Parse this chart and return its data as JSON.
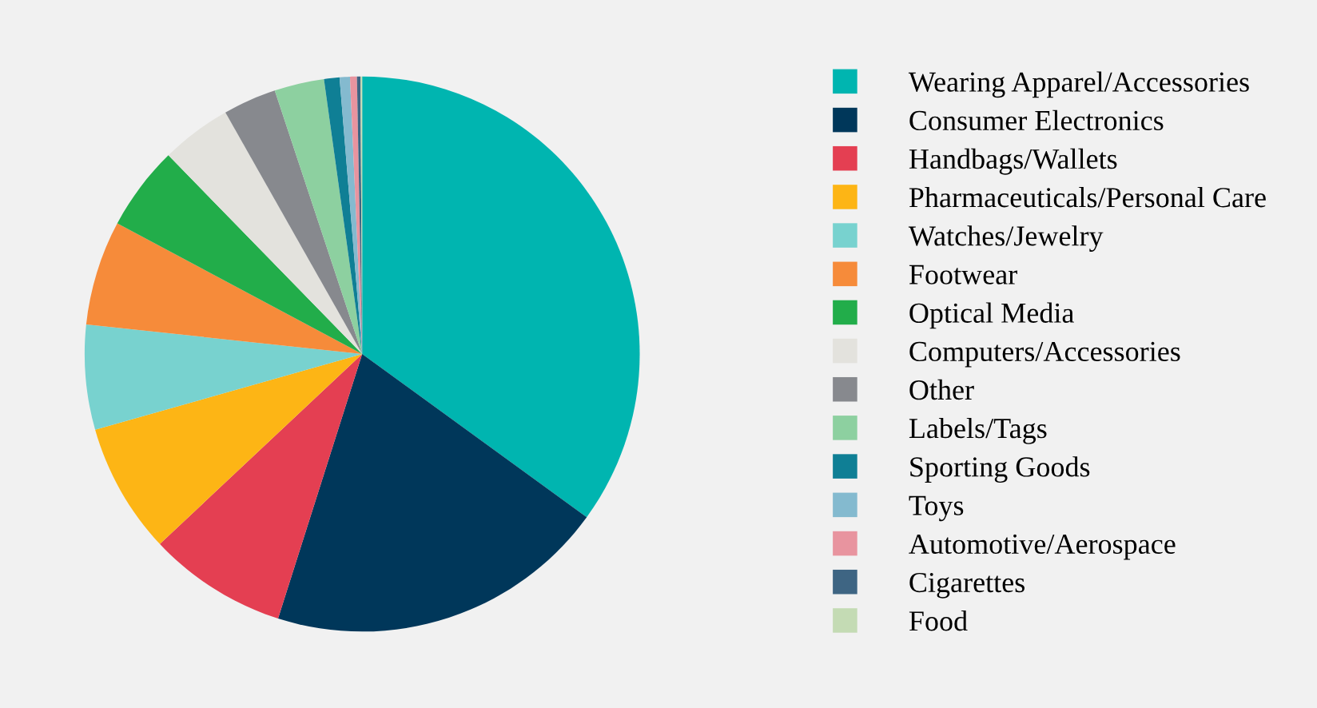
{
  "chart_data": {
    "type": "pie",
    "legend": "right",
    "categories": [
      "Wearing Apparel/Accessories",
      "Consumer Electronics",
      "Handbags/Wallets",
      "Pharmaceuticals/Personal Care",
      "Watches/Jewelry",
      "Footwear",
      "Optical Media",
      "Computers/Accessories",
      "Other",
      "Labels/Tags",
      "Sporting Goods",
      "Toys",
      "Automotive/Aerospace",
      "Cigarettes",
      "Food"
    ],
    "values": [
      35.0,
      19.9,
      8.1,
      7.6,
      6.1,
      6.1,
      4.9,
      4.1,
      3.1,
      2.9,
      0.9,
      0.6,
      0.4,
      0.2,
      0.1
    ],
    "colors": [
      "#00b5b0",
      "#00375a",
      "#e43f52",
      "#fdb515",
      "#78d2cf",
      "#f68b3a",
      "#22ad4a",
      "#e3e2dd",
      "#87898e",
      "#8dd0a0",
      "#0f7f95",
      "#84bacf",
      "#e8949f",
      "#3e6583",
      "#c4dbb4"
    ]
  }
}
